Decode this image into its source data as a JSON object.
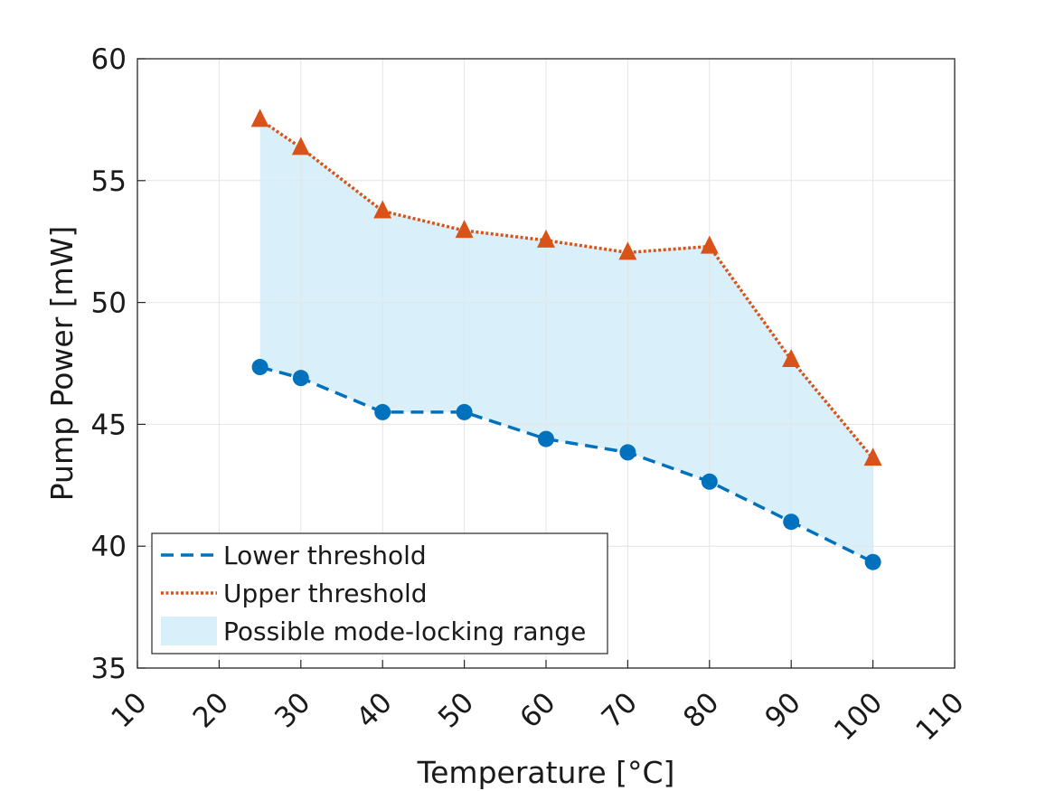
{
  "chart_data": {
    "type": "line",
    "title": "",
    "xlabel": "Temperature [°C]",
    "ylabel": "Pump Power [mW]",
    "xlim": [
      10,
      110
    ],
    "ylim": [
      35,
      60
    ],
    "xticks": [
      "10",
      "20",
      "30",
      "40",
      "50",
      "60",
      "70",
      "80",
      "90",
      "100",
      "110"
    ],
    "yticks": [
      "35",
      "40",
      "45",
      "50",
      "55",
      "60"
    ],
    "grid": true,
    "legend_position": "bottom-left",
    "x": [
      25,
      30,
      40,
      50,
      60,
      70,
      80,
      90,
      100
    ],
    "series": [
      {
        "name": "Lower threshold",
        "style": "dashed",
        "marker": "circle",
        "color": "#0072BD",
        "values": [
          47.35,
          46.9,
          45.5,
          45.5,
          44.4,
          43.85,
          42.65,
          41.0,
          39.35
        ]
      },
      {
        "name": "Upper threshold",
        "style": "dotted",
        "marker": "triangle",
        "color": "#D95319",
        "values": [
          57.5,
          56.35,
          53.75,
          52.95,
          52.55,
          52.05,
          52.3,
          47.65,
          43.6
        ]
      }
    ],
    "fill": {
      "name": "Possible mode-locking range",
      "between": [
        "Lower threshold",
        "Upper threshold"
      ],
      "color": "#D9F0FA"
    }
  }
}
